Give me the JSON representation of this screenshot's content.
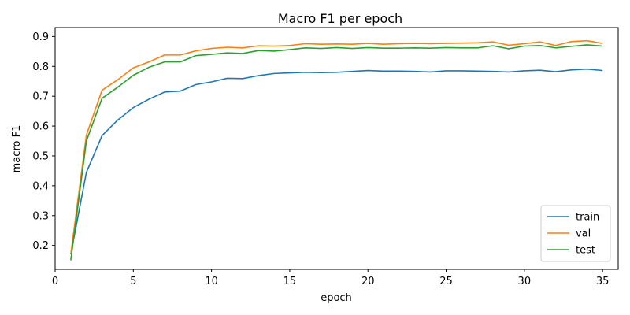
{
  "chart_data": {
    "type": "line",
    "title": "Macro F1 per epoch",
    "xlabel": "epoch",
    "ylabel": "macro F1",
    "xlim": [
      0,
      36
    ],
    "ylim": [
      0.12,
      0.93
    ],
    "xticks": [
      0,
      5,
      10,
      15,
      20,
      25,
      30,
      35
    ],
    "yticks": [
      0.2,
      0.3,
      0.4,
      0.5,
      0.6,
      0.7,
      0.8,
      0.9
    ],
    "grid": false,
    "legend_position": "lower-right",
    "x": [
      1,
      2,
      3,
      4,
      5,
      6,
      7,
      8,
      9,
      10,
      11,
      12,
      13,
      14,
      15,
      16,
      17,
      18,
      19,
      20,
      21,
      22,
      23,
      24,
      25,
      26,
      27,
      28,
      29,
      30,
      31,
      32,
      33,
      34,
      35
    ],
    "series": [
      {
        "name": "train",
        "color": "#1f77b4",
        "values": [
          0.17,
          0.445,
          0.568,
          0.62,
          0.662,
          0.69,
          0.714,
          0.717,
          0.739,
          0.748,
          0.76,
          0.759,
          0.769,
          0.776,
          0.778,
          0.78,
          0.779,
          0.78,
          0.783,
          0.786,
          0.784,
          0.784,
          0.783,
          0.781,
          0.785,
          0.785,
          0.784,
          0.783,
          0.781,
          0.785,
          0.787,
          0.782,
          0.788,
          0.791,
          0.786
        ]
      },
      {
        "name": "val",
        "color": "#ff7f0e",
        "values": [
          0.17,
          0.57,
          0.72,
          0.755,
          0.795,
          0.815,
          0.838,
          0.838,
          0.852,
          0.86,
          0.864,
          0.862,
          0.869,
          0.868,
          0.87,
          0.876,
          0.874,
          0.875,
          0.874,
          0.877,
          0.874,
          0.876,
          0.877,
          0.876,
          0.877,
          0.878,
          0.879,
          0.882,
          0.871,
          0.876,
          0.882,
          0.87,
          0.883,
          0.886,
          0.877
        ]
      },
      {
        "name": "test",
        "color": "#2ca02c",
        "values": [
          0.15,
          0.55,
          0.693,
          0.73,
          0.77,
          0.797,
          0.815,
          0.815,
          0.836,
          0.84,
          0.845,
          0.843,
          0.853,
          0.851,
          0.856,
          0.862,
          0.86,
          0.863,
          0.86,
          0.863,
          0.861,
          0.861,
          0.862,
          0.861,
          0.863,
          0.862,
          0.862,
          0.869,
          0.859,
          0.868,
          0.87,
          0.862,
          0.867,
          0.872,
          0.868
        ]
      }
    ]
  }
}
